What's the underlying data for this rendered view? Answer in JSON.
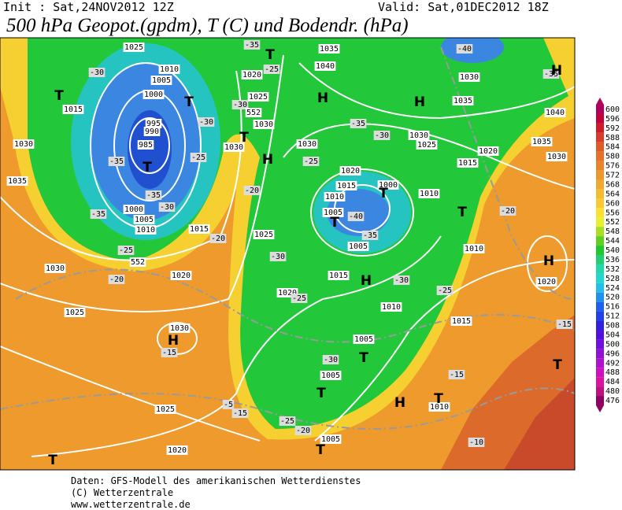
{
  "header": {
    "init": "Init : Sat,24NOV2012 12Z",
    "valid": "Valid: Sat,01DEC2012 18Z",
    "title": "500 hPa Geopot.(gpdm), T (C) und Bodendr. (hPa)"
  },
  "colorbar": {
    "labels": [
      "600",
      "596",
      "592",
      "588",
      "584",
      "580",
      "576",
      "572",
      "568",
      "564",
      "560",
      "556",
      "552",
      "548",
      "544",
      "540",
      "536",
      "532",
      "528",
      "524",
      "520",
      "516",
      "512",
      "508",
      "504",
      "500",
      "496",
      "492",
      "488",
      "484",
      "480",
      "476"
    ],
    "colors": [
      "#b0005a",
      "#c4003a",
      "#d01a2a",
      "#d83c28",
      "#e05a28",
      "#e4702a",
      "#e8842a",
      "#ec982c",
      "#f0aa30",
      "#f4bc30",
      "#f8cc30",
      "#fce030",
      "#e8f030",
      "#a8e020",
      "#60d020",
      "#20c830",
      "#20d070",
      "#20d8a8",
      "#20d8d0",
      "#20c0e8",
      "#2090f0",
      "#2060f0",
      "#2040e8",
      "#3020e0",
      "#5010e0",
      "#7010e0",
      "#9010d8",
      "#b010d0",
      "#d010c0",
      "#e010a0",
      "#c01080",
      "#900060"
    ]
  },
  "map_labels": [
    "1025",
    "1010",
    "1005",
    "1000",
    "995",
    "990",
    "985",
    "1000",
    "1005",
    "1010",
    "1015",
    "1030",
    "1035",
    "1030",
    "1025",
    "1020",
    "1015",
    "1030",
    "1025",
    "1020",
    "1020",
    "1025",
    "1030",
    "1030",
    "1025",
    "1040",
    "1035",
    "1030",
    "1035",
    "1030",
    "1020",
    "1015",
    "1010",
    "1005",
    "1000",
    "1010",
    "1005",
    "1015",
    "1020",
    "1010",
    "1005",
    "1005",
    "1005",
    "1010",
    "1015",
    "1010",
    "1030",
    "1025",
    "1020",
    "1015",
    "1040",
    "1035",
    "1030",
    "1020",
    "-40",
    "-35",
    "-30",
    "-35",
    "-35",
    "-30",
    "-35",
    "-30",
    "-25",
    "-20",
    "-25",
    "-20",
    "-15",
    "-15",
    "-20",
    "-15",
    "-10",
    "-25",
    "-30",
    "-30",
    "-25",
    "-40",
    "-35",
    "-30",
    "-35",
    "-30",
    "-25",
    "-30",
    "-25",
    "-35",
    "-20",
    "-25",
    "-15",
    "-5",
    "-20",
    "T",
    "T",
    "T",
    "H",
    "H",
    "T",
    "H",
    "T",
    "T",
    "T",
    "T",
    "H",
    "H",
    "H",
    "H",
    "T",
    "T",
    "H",
    "T",
    "T",
    "T",
    "T",
    "552",
    "552"
  ],
  "footer": [
    "Daten: GFS-Modell des amerikanischen Wetterdienstes",
    "(C) Wetterzentrale",
    "www.wetterzentrale.de"
  ]
}
